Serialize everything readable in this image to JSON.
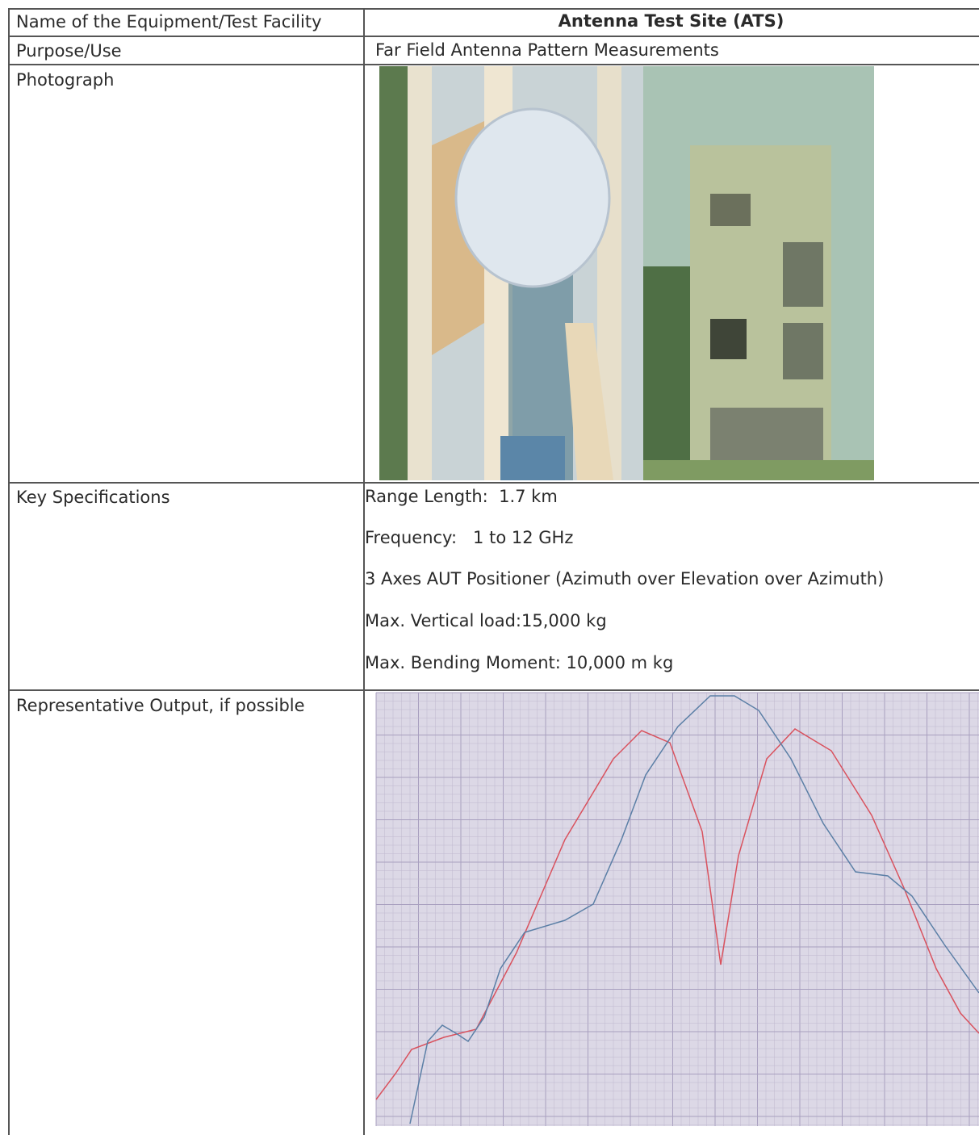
{
  "table": {
    "rows": [
      {
        "label": "Name of the Equipment/Test Facility",
        "value": "Antenna Test Site (ATS)"
      },
      {
        "label": "Purpose/Use",
        "value": "Far Field Antenna Pattern Measurements"
      },
      {
        "label": "Photograph"
      },
      {
        "label": "Key Specifications",
        "specs": [
          "Range Length:  1.7 km",
          "Frequency:   1 to 12 GHz",
          "3 Axes AUT Positioner (Azimuth over Elevation over Azimuth)",
          "Max. Vertical load:15,000 kg",
          "Max. Bending Moment: 10,000 m kg"
        ]
      },
      {
        "label": "Representative Output, if possible"
      }
    ]
  }
}
